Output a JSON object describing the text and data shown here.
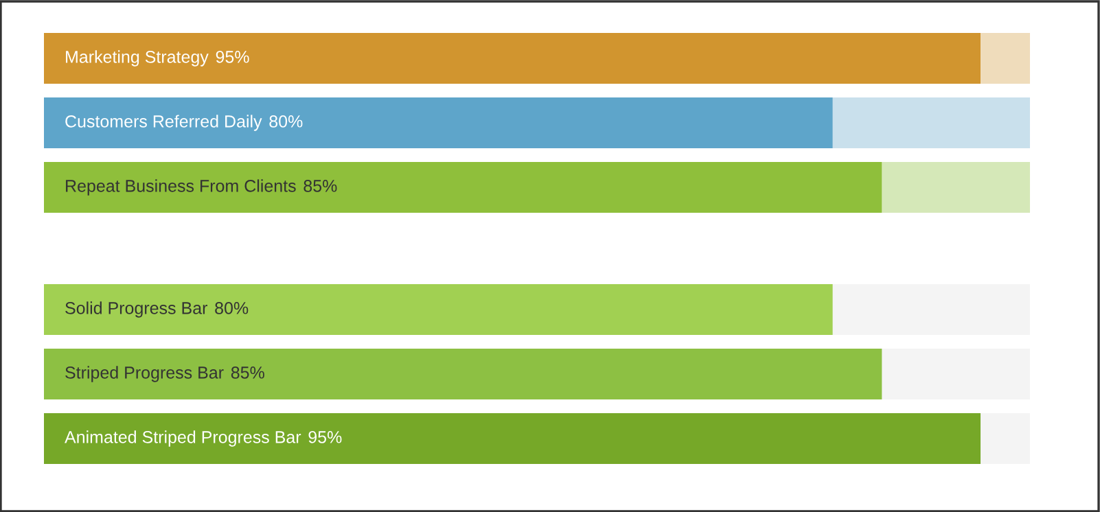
{
  "chart_data": [
    {
      "type": "bar",
      "orientation": "horizontal",
      "stacked": true,
      "categories": [
        "Marketing Strategy",
        "Customers Referred Daily",
        "Repeat Business From Clients"
      ],
      "xlim": [
        0,
        100
      ],
      "tick_labels": false,
      "series": [
        {
          "colors": [
            "#d1952f",
            "#5ea5ca",
            "#8fbf3b"
          ],
          "values": [
            95,
            80,
            85
          ],
          "value_labels": [
            "95%",
            "80%",
            "85%"
          ]
        },
        {
          "colors": [
            "#efdcbb",
            "#c9e0ec",
            "#d5e8b8"
          ],
          "values": [
            5,
            20,
            15
          ]
        }
      ]
    },
    {
      "type": "bar",
      "orientation": "horizontal",
      "stacked": true,
      "categories": [
        "Solid Progress Bar",
        "Striped Progress Bar",
        "Animated Striped Progress Bar"
      ],
      "xlim": [
        0,
        100
      ],
      "tick_labels": false,
      "series": [
        {
          "colors": [
            "#a1d052",
            "#8dc043",
            "#76a828"
          ],
          "values": [
            80,
            85,
            95
          ],
          "value_labels": [
            "80%",
            "85%",
            "95%"
          ]
        },
        {
          "colors": [
            "#f4f4f4",
            "#f4f4f4",
            "#f4f4f4"
          ],
          "values": [
            20,
            15,
            5
          ]
        }
      ]
    }
  ]
}
